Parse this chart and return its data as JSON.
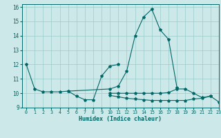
{
  "xlabel": "Humidex (Indice chaleur)",
  "bg_color": "#cce8e8",
  "grid_color": "#99cccc",
  "line_color": "#006666",
  "xlim": [
    -0.5,
    23
  ],
  "ylim": [
    9,
    16.2
  ],
  "yticks": [
    9,
    10,
    11,
    12,
    13,
    14,
    15,
    16
  ],
  "xticks": [
    0,
    1,
    2,
    3,
    4,
    5,
    6,
    7,
    8,
    9,
    10,
    11,
    12,
    13,
    14,
    15,
    16,
    17,
    18,
    19,
    20,
    21,
    22,
    23
  ],
  "series1_x": [
    0,
    1,
    2,
    3,
    4,
    5,
    10,
    11,
    12,
    13,
    14,
    15,
    16,
    17,
    18
  ],
  "series1_y": [
    12.0,
    10.3,
    10.1,
    10.1,
    10.1,
    10.15,
    10.3,
    10.5,
    11.55,
    14.0,
    15.3,
    15.85,
    14.4,
    13.75,
    10.4
  ],
  "series2_x": [
    5,
    6,
    7,
    8,
    9,
    10,
    11
  ],
  "series2_y": [
    10.15,
    9.8,
    9.55,
    9.55,
    11.2,
    11.9,
    12.0
  ],
  "series3_x": [
    10,
    11,
    12,
    13,
    14,
    15,
    16,
    17,
    18,
    19,
    20,
    21,
    22,
    23
  ],
  "series3_y": [
    9.85,
    9.75,
    9.65,
    9.6,
    9.55,
    9.5,
    9.5,
    9.5,
    9.5,
    9.5,
    9.6,
    9.65,
    9.8,
    9.4
  ],
  "series4_x": [
    10,
    11,
    12,
    13,
    14,
    15,
    16,
    17,
    18,
    19,
    20,
    21,
    22
  ],
  "series4_y": [
    10.0,
    10.0,
    10.0,
    10.0,
    10.0,
    10.0,
    10.0,
    10.05,
    10.3,
    10.3,
    10.0,
    9.7,
    9.8
  ]
}
